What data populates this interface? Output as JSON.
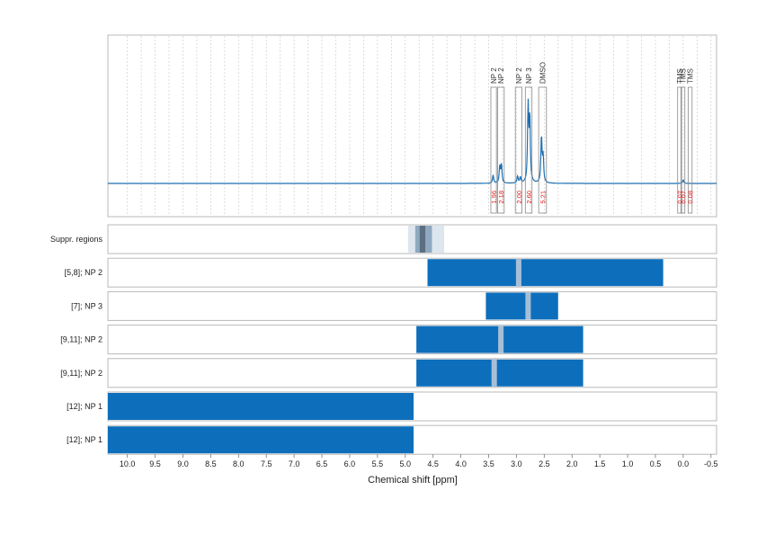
{
  "chart_data": {
    "type": "line",
    "xlabel": "Chemical shift [ppm]",
    "x_range": [
      10.35,
      -0.6
    ],
    "x_ticks": [
      10.0,
      9.5,
      9.0,
      8.5,
      8.0,
      7.5,
      7.0,
      6.5,
      6.0,
      5.5,
      5.0,
      4.5,
      4.0,
      3.5,
      3.0,
      2.5,
      2.0,
      1.5,
      1.0,
      0.5,
      0.0,
      -0.5
    ],
    "x_tick_labels": [
      "10.0",
      "9.5",
      "9.0",
      "8.5",
      "8.0",
      "7.5",
      "7.0",
      "6.5",
      "6.0",
      "5.5",
      "5.0",
      "4.5",
      "4.0",
      "3.5",
      "3.0",
      "2.5",
      "2.0",
      "1.5",
      "1.0",
      "0.5",
      "0.0",
      "-0.5"
    ],
    "spectrum": {
      "peaks": [
        {
          "shift": 3.42,
          "height": 0.07
        },
        {
          "shift": 3.3,
          "height": 0.14
        },
        {
          "shift": 3.27,
          "height": 0.16
        },
        {
          "shift": 2.98,
          "height": 0.06
        },
        {
          "shift": 2.93,
          "height": 0.05
        },
        {
          "shift": 2.79,
          "height": 0.65
        },
        {
          "shift": 2.76,
          "height": 0.55
        },
        {
          "shift": 2.55,
          "height": 0.4
        },
        {
          "shift": 2.52,
          "height": 0.22
        },
        {
          "shift": 0.0,
          "height": 0.03
        }
      ]
    },
    "peak_annotations": [
      {
        "label": "NP 2",
        "from": 3.46,
        "to": 3.36,
        "integral": "1.96"
      },
      {
        "label": "NP 2",
        "from": 3.34,
        "to": 3.22,
        "integral": "2.18"
      },
      {
        "label": "NP 2",
        "from": 3.02,
        "to": 2.9,
        "integral": "2.00"
      },
      {
        "label": "NP 3",
        "from": 2.84,
        "to": 2.72,
        "integral": "2.60"
      },
      {
        "label": "DMSO",
        "from": 2.6,
        "to": 2.46,
        "integral": "5.21"
      },
      {
        "label": "TMS",
        "from": 0.1,
        "to": 0.03,
        "integral": "0.07"
      },
      {
        "label": "TMS",
        "from": 0.04,
        "to": -0.03,
        "integral": "0.07"
      },
      {
        "label": "TMS",
        "from": -0.09,
        "to": -0.16,
        "integral": "0.08"
      }
    ],
    "suppression": {
      "label": "Suppr. regions",
      "outer": [
        4.95,
        4.3
      ],
      "mid": [
        4.82,
        4.52
      ],
      "inner": [
        4.74,
        4.64
      ]
    },
    "range_rows": [
      {
        "label": "[5,8]; NP 2",
        "from": 4.6,
        "to": 0.36,
        "marker": 2.96
      },
      {
        "label": "[7]; NP 3",
        "from": 3.55,
        "to": 2.25,
        "marker": 2.79
      },
      {
        "label": "[9,11]; NP 2",
        "from": 4.8,
        "to": 1.8,
        "marker": 3.28
      },
      {
        "label": "[9,11]; NP 2",
        "from": 4.8,
        "to": 1.8,
        "marker": 3.4
      },
      {
        "label": "[12]; NP 1",
        "from": 10.35,
        "to": 4.85,
        "marker": null
      },
      {
        "label": "[12]; NP 1",
        "from": 10.35,
        "to": 4.85,
        "marker": null
      }
    ]
  }
}
